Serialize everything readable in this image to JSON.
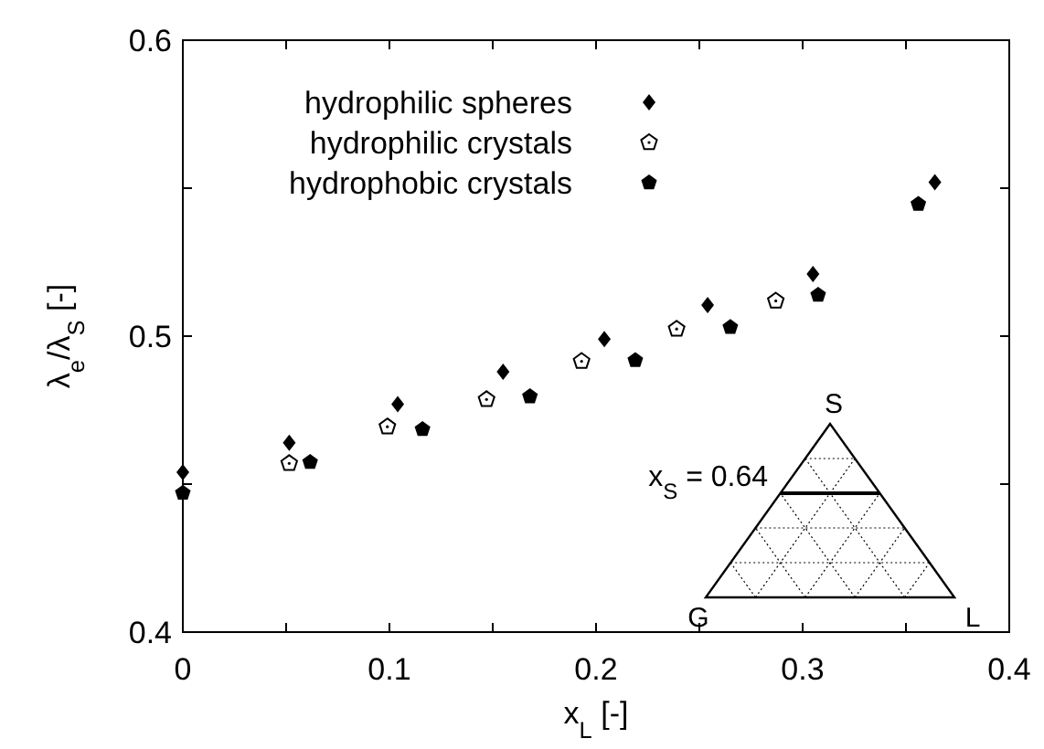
{
  "chart_data": {
    "type": "scatter",
    "xlabel": "x$_{L}$ [-]",
    "ylabel": "λ$_{e}$/λ$_{S}$ [-]",
    "xlim": [
      0,
      0.4
    ],
    "ylim": [
      0.4,
      0.6
    ],
    "xticks": [
      0,
      {
        "value": 0.05,
        "label": null
      },
      0.1,
      {
        "value": 0.15,
        "label": null
      },
      0.2,
      {
        "value": 0.25,
        "label": null
      },
      0.3,
      {
        "value": 0.35,
        "label": null
      },
      0.4
    ],
    "yticks": [
      0.4,
      {
        "value": 0.45,
        "label": null
      },
      0.5,
      {
        "value": 0.55,
        "label": null
      },
      0.6
    ],
    "legend": "top left",
    "series": [
      {
        "name": "hydrophilic spheres",
        "color": "#000000",
        "marker": "diamond",
        "x": [
          0,
          0.0515,
          0.104,
          0.155,
          0.204,
          0.254,
          0.305,
          0.364
        ],
        "values": [
          0.454,
          0.464,
          0.477,
          0.488,
          0.499,
          0.5105,
          0.521,
          0.552
        ]
      },
      {
        "name": "hydrophilic crystals",
        "color": "#000000",
        "x": [
          0.0515,
          0.099,
          0.147,
          0.193,
          0.239,
          0.287
        ],
        "values": [
          0.457,
          0.4694,
          0.4786,
          0.4915,
          0.5024,
          0.5119
        ]
      },
      {
        "name": "hydrophobic crystals",
        "color": "#000000",
        "x": [
          0,
          0.0616,
          0.116,
          0.168,
          0.219,
          0.265,
          0.3075,
          0.356
        ],
        "values": [
          0.447,
          0.4574,
          0.4685,
          0.4796,
          0.4918,
          0.503,
          0.5139,
          0.5446
        ]
      }
    ],
    "annotations": [
      "S",
      "G",
      "L",
      "x$_{S}$ = 0.64"
    ]
  }
}
